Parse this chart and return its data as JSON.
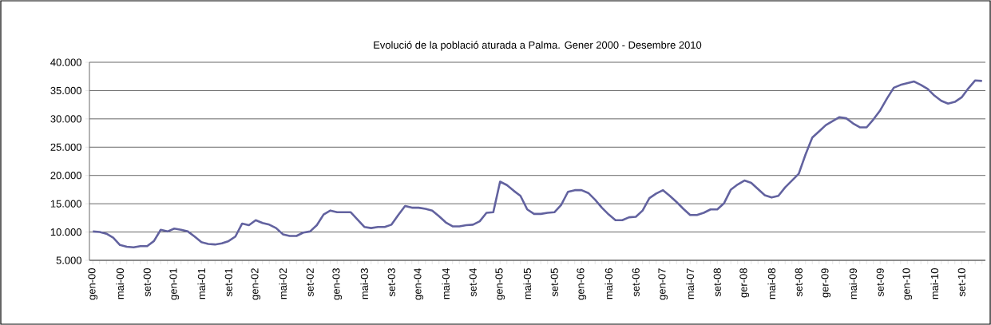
{
  "chart_data": {
    "type": "line",
    "title": "Evolució de la població aturada a Palma. Gener 2000 - Desembre 2010",
    "categories": [
      "gen-00",
      null,
      null,
      null,
      "mai-00",
      null,
      null,
      null,
      "set-00",
      null,
      null,
      null,
      "gen-01",
      null,
      null,
      null,
      "mai-01",
      null,
      null,
      null,
      "set-01",
      null,
      null,
      null,
      "gen-02",
      null,
      null,
      null,
      "mai-02",
      null,
      null,
      null,
      "set-02",
      null,
      null,
      null,
      "gen-03",
      null,
      null,
      null,
      "mai-03",
      null,
      null,
      null,
      "set-03",
      null,
      null,
      null,
      "gen-04",
      null,
      null,
      null,
      "mai-04",
      null,
      null,
      null,
      "set-04",
      null,
      null,
      null,
      "gen-05",
      null,
      null,
      null,
      "mai-05",
      null,
      null,
      null,
      "set-05",
      null,
      null,
      null,
      "gen-06",
      null,
      null,
      null,
      "mai-06",
      null,
      null,
      null,
      "set-06",
      null,
      null,
      null,
      "gen-07",
      null,
      null,
      null,
      "mai-07",
      null,
      null,
      null,
      "set-08",
      null,
      null,
      null,
      "ger-08",
      null,
      null,
      null,
      "mai-08",
      null,
      null,
      null,
      "set-08",
      null,
      null,
      null,
      "ger-09",
      null,
      null,
      null,
      "mai-09",
      null,
      null,
      null,
      "set-09",
      null,
      null,
      null,
      "gen-10",
      null,
      null,
      null,
      "mai-10",
      null,
      null,
      null,
      "set-10",
      null,
      null,
      null
    ],
    "series": [
      {
        "color": "#62629f",
        "values": [
          10100,
          10000,
          9700,
          9000,
          7700,
          7400,
          7300,
          7500,
          7500,
          8400,
          10400,
          10100,
          10600,
          10400,
          10100,
          9200,
          8200,
          7900,
          7800,
          8000,
          8400,
          9200,
          11500,
          11200,
          12100,
          11600,
          11300,
          10700,
          9600,
          9300,
          9300,
          9900,
          10100,
          11200,
          13100,
          13800,
          13500,
          13500,
          13500,
          12200,
          10900,
          10700,
          10900,
          10900,
          11300,
          13000,
          14600,
          14300,
          14300,
          14100,
          13800,
          12800,
          11700,
          11000,
          11000,
          11200,
          11300,
          11900,
          13400,
          13500,
          18900,
          18300,
          17300,
          16400,
          14000,
          13200,
          13200,
          13400,
          13500,
          14800,
          17100,
          17400,
          17400,
          16900,
          15700,
          14300,
          13100,
          12100,
          12100,
          12600,
          12700,
          13800,
          16000,
          16800,
          17400,
          16400,
          15300,
          14100,
          13000,
          13000,
          13400,
          14000,
          14000,
          15100,
          17500,
          18400,
          19100,
          18700,
          17600,
          16500,
          16100,
          16400,
          17900,
          19100,
          20300,
          23700,
          26700,
          27800,
          28900,
          29600,
          30300,
          30100,
          29200,
          28500,
          28500,
          29900,
          31500,
          33600,
          35500,
          36000,
          36300,
          36600,
          36000,
          35300,
          34100,
          33200,
          32700,
          33000,
          33800,
          35400,
          36800,
          36700
        ]
      }
    ],
    "ylim": [
      5000,
      40000
    ],
    "yticks": [
      {
        "value": 5000,
        "label": "5.000"
      },
      {
        "value": 10000,
        "label": "10.000"
      },
      {
        "value": 15000,
        "label": "15.000"
      },
      {
        "value": 20000,
        "label": "20.000"
      },
      {
        "value": 25000,
        "label": "25.000"
      },
      {
        "value": 30000,
        "label": "30.000"
      },
      {
        "value": 35000,
        "label": "35.000"
      },
      {
        "value": 40000,
        "label": "40.000"
      }
    ],
    "grid": "y",
    "marker": "none",
    "line_style": "solid"
  }
}
